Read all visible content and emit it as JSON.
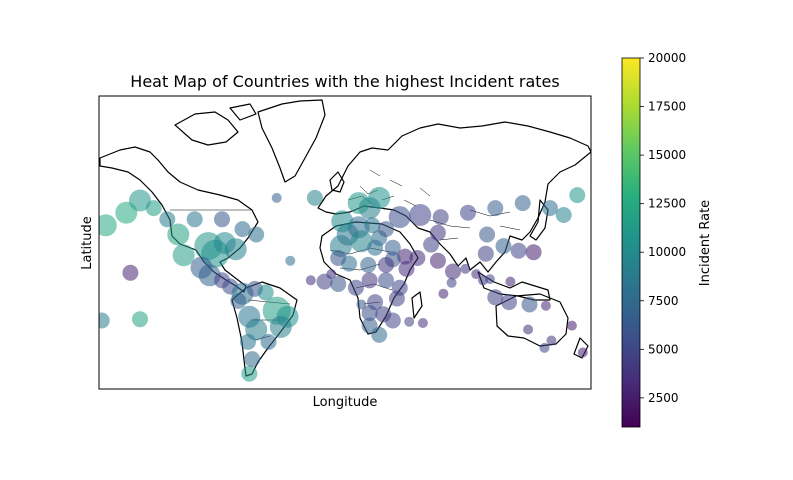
{
  "chart_data": {
    "type": "scatter",
    "title": "Heat Map of Countries with the highest Incident rates",
    "xlabel": "Longitude",
    "ylabel": "Latitude",
    "grid": false,
    "colormap": "viridis",
    "colorbar": {
      "label": "Incident Rate",
      "min": 1000,
      "max": 20000,
      "ticks": [
        "2500",
        "5000",
        "7500",
        "10000",
        "12500",
        "15000",
        "17500",
        "20000"
      ]
    },
    "xlim": [
      -180,
      180
    ],
    "ylim": [
      -60,
      84
    ],
    "points": [
      {
        "lon": -100,
        "lat": 40,
        "rate": 11000,
        "size": 4
      },
      {
        "lon": -95,
        "lat": 35,
        "rate": 10500,
        "size": 4
      },
      {
        "lon": -88,
        "lat": 42,
        "rate": 10000,
        "size": 3
      },
      {
        "lon": -80,
        "lat": 38,
        "rate": 9500,
        "size": 3
      },
      {
        "lon": -118,
        "lat": 34,
        "rate": 11500,
        "size": 3
      },
      {
        "lon": -122,
        "lat": 47,
        "rate": 12000,
        "size": 3
      },
      {
        "lon": -105,
        "lat": 25,
        "rate": 6500,
        "size": 3
      },
      {
        "lon": -99,
        "lat": 19,
        "rate": 7000,
        "size": 3
      },
      {
        "lon": -90,
        "lat": 15,
        "rate": 5000,
        "size": 2
      },
      {
        "lon": -84,
        "lat": 10,
        "rate": 5500,
        "size": 2
      },
      {
        "lon": -75,
        "lat": 4,
        "rate": 8000,
        "size": 3
      },
      {
        "lon": -66,
        "lat": 8,
        "rate": 6000,
        "size": 2
      },
      {
        "lon": -58,
        "lat": 5,
        "rate": 10000,
        "size": 2
      },
      {
        "lon": -50,
        "lat": -10,
        "rate": 11500,
        "size": 4
      },
      {
        "lon": -42,
        "lat": -15,
        "rate": 10500,
        "size": 3
      },
      {
        "lon": -47,
        "lat": -23,
        "rate": 9000,
        "size": 3
      },
      {
        "lon": -70,
        "lat": -15,
        "rate": 8500,
        "size": 3
      },
      {
        "lon": -78,
        "lat": -2,
        "rate": 7000,
        "size": 2
      },
      {
        "lon": -65,
        "lat": -25,
        "rate": 9000,
        "size": 3
      },
      {
        "lon": -71,
        "lat": -34,
        "rate": 8500,
        "size": 2
      },
      {
        "lon": -68,
        "lat": -45,
        "rate": 7500,
        "size": 2
      },
      {
        "lon": -70,
        "lat": -53,
        "rate": 11500,
        "size": 2
      },
      {
        "lon": -56,
        "lat": -34,
        "rate": 7500,
        "size": 2
      },
      {
        "lon": -150,
        "lat": 63,
        "rate": 11000,
        "size": 3
      },
      {
        "lon": -160,
        "lat": 58,
        "rate": 12500,
        "size": 3
      },
      {
        "lon": -140,
        "lat": 60,
        "rate": 11500,
        "size": 2
      },
      {
        "lon": -130,
        "lat": 55,
        "rate": 9000,
        "size": 2
      },
      {
        "lon": -110,
        "lat": 55,
        "rate": 8500,
        "size": 2
      },
      {
        "lon": -90,
        "lat": 55,
        "rate": 6000,
        "size": 2
      },
      {
        "lon": -75,
        "lat": 50,
        "rate": 7500,
        "size": 2
      },
      {
        "lon": -65,
        "lat": 47,
        "rate": 8000,
        "size": 2
      },
      {
        "lon": -175,
        "lat": 52,
        "rate": 12500,
        "size": 3
      },
      {
        "lon": -157,
        "lat": 21,
        "rate": 3000,
        "size": 2
      },
      {
        "lon": -150,
        "lat": -17,
        "rate": 12000,
        "size": 2
      },
      {
        "lon": -178,
        "lat": -18,
        "rate": 9000,
        "size": 2
      },
      {
        "lon": -50,
        "lat": 64,
        "rate": 6500,
        "size": 1
      },
      {
        "lon": -22,
        "lat": 64,
        "rate": 9500,
        "size": 2
      },
      {
        "lon": -3,
        "lat": 40,
        "rate": 9000,
        "size": 3
      },
      {
        "lon": 2,
        "lat": 47,
        "rate": 8500,
        "size": 3
      },
      {
        "lon": 10,
        "lat": 51,
        "rate": 8000,
        "size": 3
      },
      {
        "lon": 12,
        "lat": 43,
        "rate": 9500,
        "size": 3
      },
      {
        "lon": -2,
        "lat": 54,
        "rate": 10000,
        "size": 3
      },
      {
        "lon": 18,
        "lat": 60,
        "rate": 9000,
        "size": 3
      },
      {
        "lon": 25,
        "lat": 64,
        "rate": 10500,
        "size": 3
      },
      {
        "lon": 10,
        "lat": 62,
        "rate": 11000,
        "size": 3
      },
      {
        "lon": 20,
        "lat": 52,
        "rate": 8500,
        "size": 2
      },
      {
        "lon": 25,
        "lat": 45,
        "rate": 7500,
        "size": 2
      },
      {
        "lon": 22,
        "lat": 39,
        "rate": 8000,
        "size": 2
      },
      {
        "lon": 35,
        "lat": 39,
        "rate": 6500,
        "size": 2
      },
      {
        "lon": 30,
        "lat": 50,
        "rate": 6000,
        "size": 2
      },
      {
        "lon": 40,
        "lat": 56,
        "rate": 5500,
        "size": 3
      },
      {
        "lon": 55,
        "lat": 57,
        "rate": 5000,
        "size": 3
      },
      {
        "lon": 70,
        "lat": 56,
        "rate": 4500,
        "size": 2
      },
      {
        "lon": 90,
        "lat": 58,
        "rate": 5000,
        "size": 2
      },
      {
        "lon": 110,
        "lat": 60,
        "rate": 6500,
        "size": 2
      },
      {
        "lon": 130,
        "lat": 62,
        "rate": 7000,
        "size": 2
      },
      {
        "lon": 150,
        "lat": 60,
        "rate": 8000,
        "size": 2
      },
      {
        "lon": 160,
        "lat": 57,
        "rate": 9500,
        "size": 2
      },
      {
        "lon": 170,
        "lat": 65,
        "rate": 11000,
        "size": 2
      },
      {
        "lon": 68,
        "lat": 48,
        "rate": 4000,
        "size": 2
      },
      {
        "lon": 63,
        "lat": 41,
        "rate": 5000,
        "size": 2
      },
      {
        "lon": 53,
        "lat": 32,
        "rate": 3500,
        "size": 2
      },
      {
        "lon": 44,
        "lat": 33,
        "rate": 3000,
        "size": 2
      },
      {
        "lon": 45,
        "lat": 24,
        "rate": 3500,
        "size": 2
      },
      {
        "lon": 35,
        "lat": 31,
        "rate": 6000,
        "size": 2
      },
      {
        "lon": 30,
        "lat": 27,
        "rate": 4000,
        "size": 2
      },
      {
        "lon": 68,
        "lat": 30,
        "rate": 3000,
        "size": 2
      },
      {
        "lon": 79,
        "lat": 22,
        "rate": 3500,
        "size": 2
      },
      {
        "lon": 88,
        "lat": 24,
        "rate": 4000,
        "size": 1
      },
      {
        "lon": 78,
        "lat": 13,
        "rate": 4500,
        "size": 1
      },
      {
        "lon": 96,
        "lat": 20,
        "rate": 3500,
        "size": 1
      },
      {
        "lon": 101,
        "lat": 15,
        "rate": 4000,
        "size": 1
      },
      {
        "lon": 106,
        "lat": 16,
        "rate": 5000,
        "size": 1
      },
      {
        "lon": 103,
        "lat": 35,
        "rate": 4500,
        "size": 2
      },
      {
        "lon": 116,
        "lat": 40,
        "rate": 7000,
        "size": 2
      },
      {
        "lon": 104,
        "lat": 47,
        "rate": 6000,
        "size": 2
      },
      {
        "lon": 127,
        "lat": 37,
        "rate": 5000,
        "size": 2
      },
      {
        "lon": 138,
        "lat": 36,
        "rate": 2500,
        "size": 2
      },
      {
        "lon": 121,
        "lat": 14,
        "rate": 3000,
        "size": 1
      },
      {
        "lon": 110,
        "lat": 1,
        "rate": 4500,
        "size": 2
      },
      {
        "lon": 120,
        "lat": -3,
        "rate": 5000,
        "size": 2
      },
      {
        "lon": 135,
        "lat": -5,
        "rate": 6000,
        "size": 2
      },
      {
        "lon": 147,
        "lat": -6,
        "rate": 3000,
        "size": 1
      },
      {
        "lon": 166,
        "lat": -22,
        "rate": 2500,
        "size": 1
      },
      {
        "lon": 174,
        "lat": -41,
        "rate": 2500,
        "size": 1
      },
      {
        "lon": 134,
        "lat": -25,
        "rate": 3500,
        "size": 1
      },
      {
        "lon": 146,
        "lat": -38,
        "rate": 5000,
        "size": 1
      },
      {
        "lon": 151,
        "lat": -33,
        "rate": 4000,
        "size": 1
      },
      {
        "lon": -5,
        "lat": 32,
        "rate": 6000,
        "size": 2
      },
      {
        "lon": 3,
        "lat": 28,
        "rate": 8000,
        "size": 2
      },
      {
        "lon": 17,
        "lat": 27,
        "rate": 7000,
        "size": 2
      },
      {
        "lon": -10,
        "lat": 20,
        "rate": 3500,
        "size": 1
      },
      {
        "lon": -15,
        "lat": 14,
        "rate": 4500,
        "size": 2
      },
      {
        "lon": -5,
        "lat": 12,
        "rate": 6000,
        "size": 2
      },
      {
        "lon": 8,
        "lat": 9,
        "rate": 5000,
        "size": 2
      },
      {
        "lon": 18,
        "lat": 15,
        "rate": 4000,
        "size": 2
      },
      {
        "lon": 30,
        "lat": 15,
        "rate": 5500,
        "size": 2
      },
      {
        "lon": 40,
        "lat": 9,
        "rate": 5000,
        "size": 2
      },
      {
        "lon": 38,
        "lat": 0,
        "rate": 4500,
        "size": 2
      },
      {
        "lon": 22,
        "lat": -3,
        "rate": 5000,
        "size": 2
      },
      {
        "lon": 12,
        "lat": -5,
        "rate": 6000,
        "size": 1
      },
      {
        "lon": 18,
        "lat": -12,
        "rate": 5500,
        "size": 2
      },
      {
        "lon": 28,
        "lat": -13,
        "rate": 4500,
        "size": 2
      },
      {
        "lon": 35,
        "lat": -18,
        "rate": 5000,
        "size": 2
      },
      {
        "lon": 18,
        "lat": -22,
        "rate": 6500,
        "size": 2
      },
      {
        "lon": 25,
        "lat": -29,
        "rate": 7500,
        "size": 2
      },
      {
        "lon": 47,
        "lat": -19,
        "rate": 4500,
        "size": 1
      },
      {
        "lon": 57,
        "lat": -20,
        "rate": 3500,
        "size": 1
      },
      {
        "lon": 72,
        "lat": 4,
        "rate": 3000,
        "size": 1
      },
      {
        "lon": -40,
        "lat": 30,
        "rate": 8000,
        "size": 1
      },
      {
        "lon": -25,
        "lat": 15,
        "rate": 3500,
        "size": 1
      }
    ]
  }
}
